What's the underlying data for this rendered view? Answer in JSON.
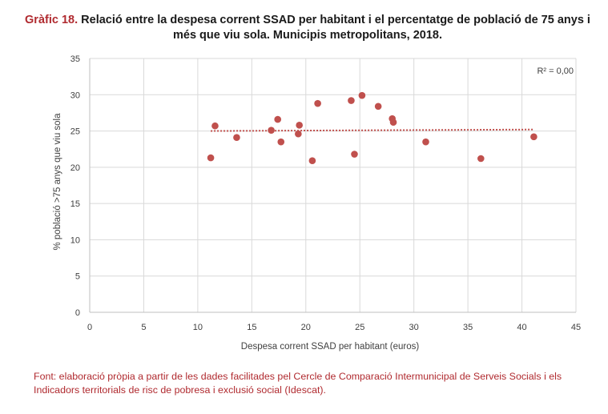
{
  "title": {
    "label": "Gràfic 18.",
    "text": "Relació entre la despesa corrent SSAD per habitant i el percentatge de població de 75 anys i més que viu sola. Municipis metropolitans, 2018."
  },
  "source": "Font: elaboració pròpia a partir de les dades facilitades pel Cercle de Comparació Intermunicipal de Serveis Socials i els Indicadors territorials de risc de pobresa i exclusió social (Idescat).",
  "colors": {
    "points": "#c0504d",
    "grid": "#d9d9d9",
    "axis": "#bfbfbf",
    "text": "#404040"
  },
  "chart_data": {
    "type": "scatter",
    "xlabel": "Despesa corrent SSAD per habitant (euros)",
    "ylabel": "% població >75 anys que viu sola",
    "xlim": [
      0,
      45
    ],
    "ylim": [
      0,
      35
    ],
    "xticks": [
      0,
      5,
      10,
      15,
      20,
      25,
      30,
      35,
      40,
      45
    ],
    "yticks": [
      0,
      5,
      10,
      15,
      20,
      25,
      30,
      35
    ],
    "grid": true,
    "annotation": "R² = 0,00",
    "points": [
      {
        "x": 11.2,
        "y": 21.3
      },
      {
        "x": 11.6,
        "y": 25.7
      },
      {
        "x": 13.6,
        "y": 24.1
      },
      {
        "x": 16.8,
        "y": 25.1
      },
      {
        "x": 17.4,
        "y": 26.6
      },
      {
        "x": 17.7,
        "y": 23.5
      },
      {
        "x": 19.3,
        "y": 24.6
      },
      {
        "x": 19.4,
        "y": 25.8
      },
      {
        "x": 20.6,
        "y": 20.9
      },
      {
        "x": 21.1,
        "y": 28.8
      },
      {
        "x": 24.2,
        "y": 29.2
      },
      {
        "x": 24.5,
        "y": 21.8
      },
      {
        "x": 25.2,
        "y": 29.9
      },
      {
        "x": 26.7,
        "y": 28.4
      },
      {
        "x": 28.0,
        "y": 26.7
      },
      {
        "x": 28.1,
        "y": 26.2
      },
      {
        "x": 31.1,
        "y": 23.5
      },
      {
        "x": 36.2,
        "y": 21.2
      },
      {
        "x": 41.1,
        "y": 24.2
      }
    ],
    "trendline": {
      "x": [
        11.2,
        41.1
      ],
      "y": [
        25.0,
        25.2
      ]
    }
  }
}
